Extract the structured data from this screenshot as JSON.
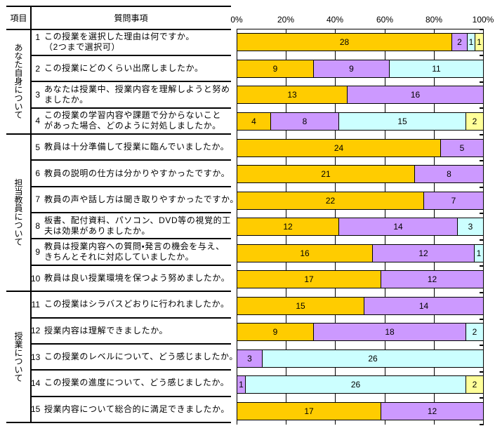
{
  "table": {
    "header_item": "項目",
    "header_question": "質問事項",
    "groups": [
      {
        "label": "あなた自身について",
        "row_start": 1,
        "row_end": 4
      },
      {
        "label": "担当教員について",
        "row_start": 5,
        "row_end": 10
      },
      {
        "label": "授業について",
        "row_start": 11,
        "row_end": 15
      }
    ]
  },
  "chart_data": {
    "type": "bar",
    "subtype": "horizontal_stacked_100_percent",
    "title": "",
    "xlabel": "",
    "ylabel": "",
    "axis_ticks": [
      "0%",
      "20%",
      "40%",
      "60%",
      "80%",
      "100%"
    ],
    "axis_range": [
      0,
      100
    ],
    "grid": true,
    "tick_label_position": "top",
    "legend": "none",
    "series_colors": [
      "#FFCC00",
      "#CC99FF",
      "#CCFFFF",
      "#FFFF99"
    ],
    "rows": [
      {
        "no": 1,
        "group": "あなた自身について",
        "question": "この授業を選択した理由は何ですか。\n（2つまで選択可）",
        "values": [
          28,
          2,
          1,
          1
        ]
      },
      {
        "no": 2,
        "group": "あなた自身について",
        "question": "この授業にどのくらい出席しましたか。",
        "values": [
          9,
          9,
          11,
          0
        ]
      },
      {
        "no": 3,
        "group": "あなた自身について",
        "question": "あなたは授業中、授業内容を理解しようと努め\nましたか。",
        "values": [
          13,
          16,
          0,
          0
        ]
      },
      {
        "no": 4,
        "group": "あなた自身について",
        "question": "この授業の学習内容や課題で分からないこと\nがあった場合、どのように対処しましたか。",
        "values": [
          4,
          8,
          15,
          2
        ]
      },
      {
        "no": 5,
        "group": "担当教員について",
        "question": "教員は十分準備して授業に臨んでいましたか。",
        "values": [
          24,
          5,
          0,
          0
        ]
      },
      {
        "no": 6,
        "group": "担当教員について",
        "question": "教員の説明の仕方は分かりやすかったですか。",
        "values": [
          21,
          8,
          0,
          0
        ]
      },
      {
        "no": 7,
        "group": "担当教員について",
        "question": "教員の声や話し方は聞き取りやすかったですか。",
        "values": [
          22,
          7,
          0,
          0
        ]
      },
      {
        "no": 8,
        "group": "担当教員について",
        "question": "板書、配付資料、パソコン、DVD等の視覚的工\n夫は効果がありましたか。",
        "values": [
          12,
          14,
          3,
          0
        ]
      },
      {
        "no": 9,
        "group": "担当教員について",
        "question": "教員は授業内容への質問・発言の機会を与え、\nきちんとそれに対応していましたか。",
        "values": [
          16,
          12,
          1,
          0
        ]
      },
      {
        "no": 10,
        "group": "担当教員について",
        "question": "教員は良い授業環境を保つよう努めましたか。",
        "values": [
          17,
          12,
          0,
          0
        ]
      },
      {
        "no": 11,
        "group": "授業について",
        "question": "この授業はシラバスどおりに行われましたか。",
        "values": [
          15,
          14,
          0,
          0
        ]
      },
      {
        "no": 12,
        "group": "授業について",
        "question": "授業内容は理解できましたか。",
        "values": [
          9,
          18,
          2,
          0
        ]
      },
      {
        "no": 13,
        "group": "授業について",
        "question": "この授業のレベルについて、どう感じましたか。",
        "values": [
          0,
          3,
          26,
          0
        ]
      },
      {
        "no": 14,
        "group": "授業について",
        "question": "この授業の進度について、どう感じましたか。",
        "values": [
          0,
          1,
          26,
          2
        ]
      },
      {
        "no": 15,
        "group": "授業について",
        "question": "授業内容について総合的に満足できましたか。",
        "values": [
          17,
          12,
          0,
          0
        ]
      }
    ]
  }
}
